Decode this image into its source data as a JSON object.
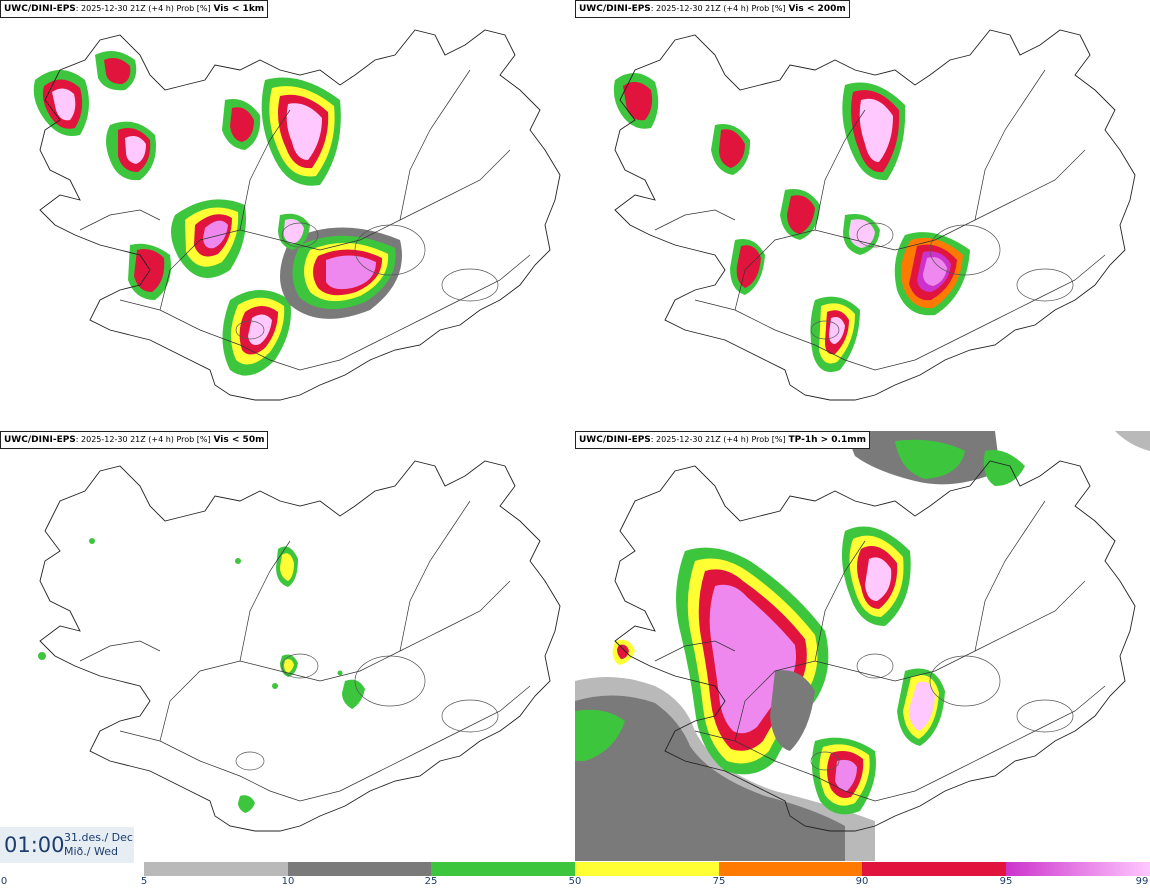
{
  "panels": [
    {
      "id": "vis1km",
      "model": "UWC/DINI-EPS",
      "meta": ": 2025-12-30 21Z (+4 h) Prob [%]",
      "param": "Vis < 1km"
    },
    {
      "id": "vis200m",
      "model": "UWC/DINI-EPS",
      "meta": ": 2025-12-30 21Z (+4 h) Prob [%]",
      "param": "Vis < 200m"
    },
    {
      "id": "vis50m",
      "model": "UWC/DINI-EPS",
      "meta": ": 2025-12-30 21Z (+4 h) Prob [%]",
      "param": "Vis < 50m"
    },
    {
      "id": "tp1h",
      "model": "UWC/DINI-EPS",
      "meta": ": 2025-12-30 21Z (+4 h) Prob [%]",
      "param": "TP-1h > 0.1mm"
    }
  ],
  "time": {
    "clock": "01:00",
    "date_line1": "31.des./ Dec",
    "date_line2": "Mið./ Wed"
  },
  "legend": {
    "ticks": [
      "0",
      "5",
      "10",
      "25",
      "50",
      "75",
      "90",
      "95",
      "99"
    ],
    "colors": {
      "5-10": "#b9b9b9",
      "10-25": "#7a7a7a",
      "25-50": "#3dc63d",
      "50-75": "#ffff33",
      "75-90": "#ff7a00",
      "90-95": "#e0143c",
      "95-99_start": "#cc33cc",
      "95-99_end": "#ffc8ff"
    }
  }
}
